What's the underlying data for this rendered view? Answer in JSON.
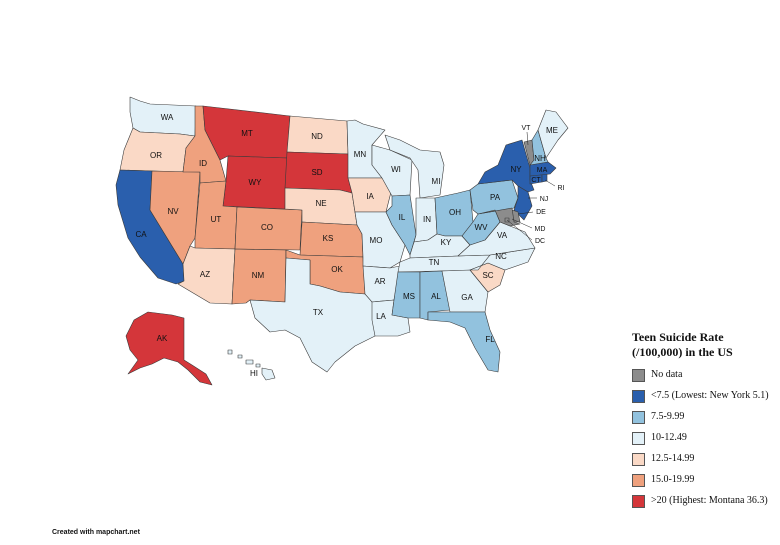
{
  "legend": {
    "title_line1": "Teen Suicide Rate",
    "title_line2": "(/100,000) in the US",
    "items": [
      {
        "label": "No data",
        "color": "#8c8c8c"
      },
      {
        "label": "<7.5 (Lowest: New York 5.1)",
        "color": "#2a5fad"
      },
      {
        "label": "7.5-9.99",
        "color": "#92c2de"
      },
      {
        "label": "10-12.49",
        "color": "#e3f1f8"
      },
      {
        "label": "12.5-14.99",
        "color": "#fad9c6"
      },
      {
        "label": "15.0-19.99",
        "color": "#efa17e"
      },
      {
        "label": ">20 (Highest: Montana 36.3)",
        "color": "#d4363a"
      }
    ]
  },
  "credit": "Created with mapchart.net",
  "states": [
    {
      "abbr": "WA",
      "cat": 3
    },
    {
      "abbr": "OR",
      "cat": 4
    },
    {
      "abbr": "CA",
      "cat": 1
    },
    {
      "abbr": "NV",
      "cat": 5
    },
    {
      "abbr": "ID",
      "cat": 5
    },
    {
      "abbr": "MT",
      "cat": 6
    },
    {
      "abbr": "WY",
      "cat": 6
    },
    {
      "abbr": "UT",
      "cat": 5
    },
    {
      "abbr": "AZ",
      "cat": 4
    },
    {
      "abbr": "CO",
      "cat": 5
    },
    {
      "abbr": "NM",
      "cat": 5
    },
    {
      "abbr": "ND",
      "cat": 4
    },
    {
      "abbr": "SD",
      "cat": 6
    },
    {
      "abbr": "NE",
      "cat": 4
    },
    {
      "abbr": "KS",
      "cat": 5
    },
    {
      "abbr": "OK",
      "cat": 5
    },
    {
      "abbr": "TX",
      "cat": 3
    },
    {
      "abbr": "MN",
      "cat": 3
    },
    {
      "abbr": "IA",
      "cat": 4
    },
    {
      "abbr": "MO",
      "cat": 3
    },
    {
      "abbr": "AR",
      "cat": 3
    },
    {
      "abbr": "LA",
      "cat": 3
    },
    {
      "abbr": "WI",
      "cat": 3
    },
    {
      "abbr": "IL",
      "cat": 2
    },
    {
      "abbr": "MI",
      "cat": 3
    },
    {
      "abbr": "IN",
      "cat": 3
    },
    {
      "abbr": "OH",
      "cat": 2
    },
    {
      "abbr": "KY",
      "cat": 3
    },
    {
      "abbr": "TN",
      "cat": 3
    },
    {
      "abbr": "MS",
      "cat": 2
    },
    {
      "abbr": "AL",
      "cat": 2
    },
    {
      "abbr": "GA",
      "cat": 3
    },
    {
      "abbr": "FL",
      "cat": 2
    },
    {
      "abbr": "SC",
      "cat": 4
    },
    {
      "abbr": "NC",
      "cat": 3
    },
    {
      "abbr": "VA",
      "cat": 3
    },
    {
      "abbr": "WV",
      "cat": 2
    },
    {
      "abbr": "PA",
      "cat": 2
    },
    {
      "abbr": "NY",
      "cat": 1
    },
    {
      "abbr": "NJ",
      "cat": 1
    },
    {
      "abbr": "DE",
      "cat": 0
    },
    {
      "abbr": "MD",
      "cat": 0
    },
    {
      "abbr": "DC",
      "cat": 0
    },
    {
      "abbr": "CT",
      "cat": 1
    },
    {
      "abbr": "RI",
      "cat": 1
    },
    {
      "abbr": "MA",
      "cat": 1
    },
    {
      "abbr": "VT",
      "cat": 0
    },
    {
      "abbr": "NH",
      "cat": 2
    },
    {
      "abbr": "ME",
      "cat": 3
    },
    {
      "abbr": "AK",
      "cat": 6
    },
    {
      "abbr": "HI",
      "cat": 3
    }
  ]
}
